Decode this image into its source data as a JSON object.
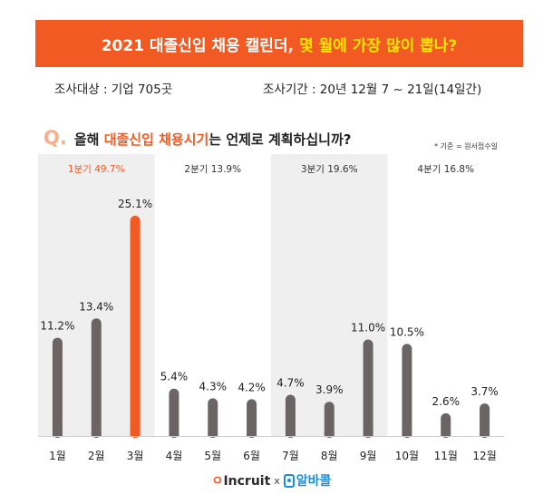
{
  "banner": {
    "title_main": "2021 대졸신입 채용 캘린더,",
    "title_highlight": "몇 월에 가장 많이 뽑나?"
  },
  "info": {
    "target": "조사대상 : 기업 705곳",
    "period": "조사기간 : 20년 12월 7 ~ 21일(14일간)"
  },
  "question": {
    "mark": "Q.",
    "prefix": "올해",
    "highlight": "대졸신입 채용시기",
    "suffix": "는 언제로 계획하십니까?",
    "note": "* 기준 = 원서접수일"
  },
  "colors": {
    "banner": "#f15a22",
    "banner_highlight": "#ffe600",
    "bar": "#6b6465",
    "bar_highlight": "#f15a22",
    "quarter_bg": "#efefef"
  },
  "logos": {
    "incruit": "Incruit",
    "x": "x",
    "alba": "알바콜"
  },
  "chart_data": {
    "type": "bar",
    "categories": [
      "1월",
      "2월",
      "3월",
      "4월",
      "5월",
      "6월",
      "7월",
      "8월",
      "9월",
      "10월",
      "11월",
      "12월"
    ],
    "values": [
      11.2,
      13.4,
      25.1,
      5.4,
      4.3,
      4.2,
      4.7,
      3.9,
      11.0,
      10.5,
      2.6,
      3.7
    ],
    "labels": [
      "11.2%",
      "13.4%",
      "25.1%",
      "5.4%",
      "4.3%",
      "4.2%",
      "4.7%",
      "3.9%",
      "11.0%",
      "10.5%",
      "2.6%",
      "3.7%"
    ],
    "highlight_index": 2,
    "quarters": [
      {
        "label": "1분기  49.7%",
        "value": 49.7,
        "highlight": true
      },
      {
        "label": "2분기  13.9%",
        "value": 13.9,
        "highlight": false
      },
      {
        "label": "3분기  19.6%",
        "value": 19.6,
        "highlight": false
      },
      {
        "label": "4분기  16.8%",
        "value": 16.8,
        "highlight": false
      }
    ],
    "ylim": [
      0,
      25.1
    ]
  }
}
